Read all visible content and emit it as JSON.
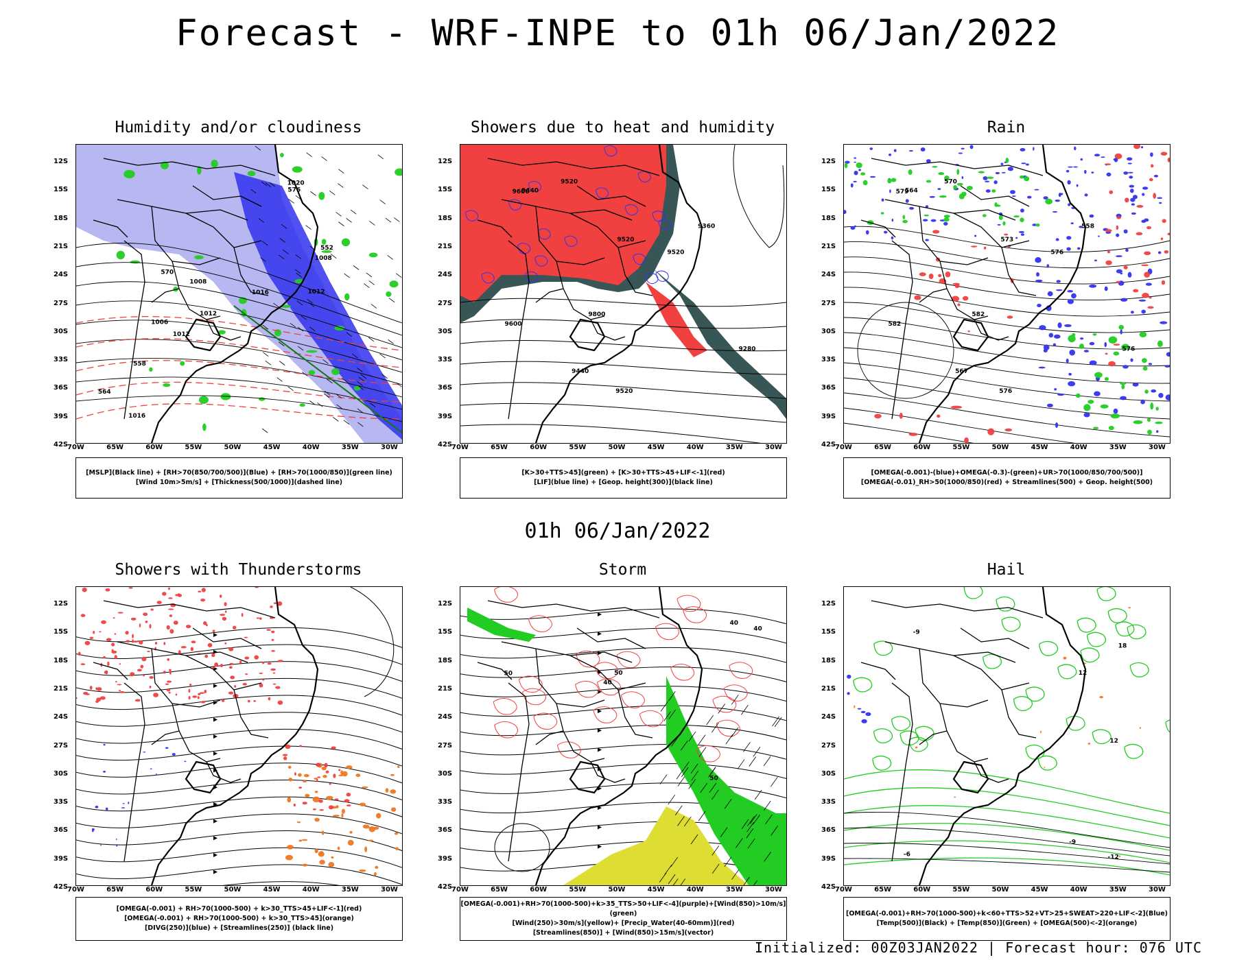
{
  "main_title": "Forecast - WRF-INPE to 01h 06/Jan/2022",
  "mid_title": "01h 06/Jan/2022",
  "footer": "Initialized: 00Z03JAN2022 | Forecast hour: 076 UTC",
  "lat_labels": [
    "12S",
    "15S",
    "18S",
    "21S",
    "24S",
    "27S",
    "30S",
    "33S",
    "36S",
    "39S",
    "42S"
  ],
  "lon_labels": [
    "70W",
    "65W",
    "60W",
    "55W",
    "50W",
    "45W",
    "40W",
    "35W",
    "30W"
  ],
  "panels": [
    {
      "title": "Humidity and/or cloudiness",
      "legend": [
        "[MSLP](Black line) + [RH>70(850/700/500)](Blue) + [RH>70(1000/850)](green line)",
        "[Wind 10m>5m/s] + [Thickness(500/1000)](dashed line)"
      ],
      "contour_labels": [
        "1008",
        "1012",
        "1016",
        "1020",
        "1006",
        "1016",
        "576",
        "570",
        "564",
        "558",
        "552",
        "1012",
        "1008",
        "1012"
      ]
    },
    {
      "title": "Showers due to heat and humidity",
      "legend": [
        "[K>30+TTS>45](green) + [K>30+TTS>45+LIF<-1](red)",
        "[LIF](blue line) + [Geop. height(300)](black line)"
      ],
      "contour_labels": [
        "9600",
        "9800",
        "9600",
        "9520",
        "9520",
        "9520",
        "9440",
        "9440",
        "9360",
        "9280",
        "9520"
      ]
    },
    {
      "title": "Rain",
      "legend": [
        "[OMEGA(-0.001)-(blue)+OMEGA(-0.3)-(green)+UR>70(1000/850/700/500)]",
        "[OMEGA(-0.01)_RH>50(1000/850)(red) + Streamlines(500) + Geop. height(500)"
      ],
      "contour_labels": [
        "582",
        "582",
        "579",
        "576",
        "573",
        "570",
        "567",
        "564",
        "558",
        "576",
        "576"
      ]
    },
    {
      "title": "Showers with Thunderstorms",
      "legend": [
        "[OMEGA(-0.001) + RH>70(1000-500) + k>30_TTS>45+LIF<-1](red)",
        "[OMEGA(-0.001) + RH>70(1000-500) + k>30_TTS>45](orange)",
        "[DIVG(250)](blue) + [Streamlines(250)] (black line)"
      ],
      "contour_labels": []
    },
    {
      "title": "Storm",
      "legend": [
        "[OMEGA(-0.001)+RH>70(1000-500)+k>35_TTS>50+LIF<-4](purple)+[Wind(850)>10m/s](green)",
        "[Wind(250)>30m/s](yellow)+ [Precip_Water(40-60mm)](red)",
        "[Streamlines(850)] + [Wind(850)>15m/s](vector)"
      ],
      "contour_labels": [
        "40",
        "50",
        "40",
        "50",
        "40",
        "50"
      ]
    },
    {
      "title": "Hail",
      "legend": [
        "[OMEGA(-0.001)+RH>70(1000-500)+k<60+TTS>52+VT>25+SWEAT>220+LIF<-2](Blue)",
        "[Temp(500)](Black) + [Temp(850)](Green) + [OMEGA(500)<-2](orange)"
      ],
      "contour_labels": [
        "-6",
        "-9",
        "12",
        "-12",
        "12",
        "18",
        "-9"
      ]
    }
  ],
  "colors": {
    "red": "#f04040",
    "blue": "#3333ee",
    "green": "#22cc22",
    "orange": "#ee7722",
    "yellow": "#dddd33",
    "darkgreen": "#224444",
    "lightblue": "#aaaaee"
  }
}
